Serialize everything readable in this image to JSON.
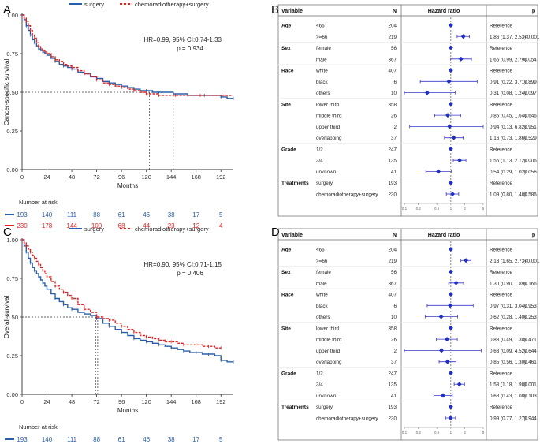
{
  "panel_letters": [
    "A",
    "B",
    "C",
    "D"
  ],
  "chart_data": [
    {
      "panel": "A",
      "type": "line",
      "subtype": "kaplan-meier",
      "legend": [
        "surgery",
        "chemoradiotherapy+surgery"
      ],
      "legend_placement": "top-center",
      "ylabel": "Cancer-specific survival",
      "xlabel": "Months",
      "xlim": [
        0,
        204
      ],
      "ylim": [
        0,
        1
      ],
      "x_ticks": [
        "0",
        "24",
        "48",
        "72",
        "96",
        "120",
        "144",
        "168",
        "192"
      ],
      "y_ticks": [
        "0.00",
        "0.25",
        "0.50",
        "0.75",
        "1.00"
      ],
      "annotation": [
        "HR=0.99, 95% CI:0.74-1.33",
        "p = 0.934"
      ],
      "median_lines": [
        123,
        146
      ],
      "series": [
        {
          "name": "surgery",
          "color": "#2b5ea8",
          "x": [
            0,
            2,
            4,
            6,
            8,
            10,
            12,
            14,
            16,
            18,
            20,
            22,
            24,
            28,
            32,
            36,
            40,
            44,
            48,
            54,
            60,
            66,
            72,
            78,
            84,
            90,
            96,
            102,
            108,
            114,
            120,
            126,
            132,
            138,
            146,
            152,
            160,
            168,
            176,
            184,
            192,
            198,
            204
          ],
          "y": [
            1.0,
            0.97,
            0.93,
            0.9,
            0.87,
            0.84,
            0.82,
            0.8,
            0.78,
            0.77,
            0.76,
            0.75,
            0.74,
            0.72,
            0.7,
            0.68,
            0.67,
            0.66,
            0.65,
            0.63,
            0.62,
            0.6,
            0.59,
            0.57,
            0.56,
            0.55,
            0.54,
            0.53,
            0.52,
            0.51,
            0.51,
            0.5,
            0.5,
            0.5,
            0.49,
            0.49,
            0.48,
            0.48,
            0.48,
            0.48,
            0.47,
            0.46,
            0.46
          ]
        },
        {
          "name": "chemoradiotherapy+surgery",
          "color": "#e02424",
          "x": [
            0,
            2,
            4,
            6,
            8,
            10,
            12,
            14,
            16,
            18,
            20,
            22,
            24,
            28,
            32,
            36,
            40,
            44,
            48,
            54,
            60,
            66,
            72,
            78,
            84,
            90,
            96,
            102,
            108,
            114,
            120,
            126,
            132,
            140,
            148,
            160,
            172,
            186,
            196,
            204
          ],
          "y": [
            1.0,
            0.98,
            0.96,
            0.93,
            0.9,
            0.87,
            0.85,
            0.82,
            0.8,
            0.78,
            0.77,
            0.76,
            0.75,
            0.73,
            0.71,
            0.7,
            0.68,
            0.67,
            0.66,
            0.64,
            0.62,
            0.6,
            0.58,
            0.56,
            0.55,
            0.54,
            0.53,
            0.52,
            0.51,
            0.5,
            0.49,
            0.49,
            0.48,
            0.48,
            0.48,
            0.48,
            0.48,
            0.48,
            0.48,
            0.48
          ]
        }
      ],
      "risk_table": {
        "title": "Number at risk",
        "times": [
          0,
          24,
          48,
          72,
          96,
          120,
          144,
          168,
          192
        ],
        "rows": [
          {
            "name": "surgery",
            "color": "#2b5ea8",
            "values": [
              "193",
              "140",
              "111",
              "88",
              "61",
              "46",
              "38",
              "17",
              "5"
            ]
          },
          {
            "name": "chemoradiotherapy+surgery",
            "color": "#e02424",
            "values": [
              "230",
              "178",
              "144",
              "100",
              "68",
              "44",
              "23",
              "12",
              "4"
            ]
          }
        ]
      }
    },
    {
      "panel": "C",
      "type": "line",
      "subtype": "kaplan-meier",
      "legend": [
        "surgery",
        "chemoradiotherapy+surgery"
      ],
      "legend_placement": "top-center",
      "ylabel": "Overall survival",
      "xlabel": "Months",
      "xlim": [
        0,
        204
      ],
      "ylim": [
        0,
        1
      ],
      "x_ticks": [
        "0",
        "24",
        "48",
        "72",
        "96",
        "120",
        "144",
        "168",
        "192"
      ],
      "y_ticks": [
        "0.00",
        "0.25",
        "0.50",
        "0.75",
        "1.00"
      ],
      "annotation": [
        "HR=0.90, 95% CI:0.71-1.15",
        "p = 0.406"
      ],
      "median_lines": [
        71,
        73
      ],
      "series": [
        {
          "name": "surgery",
          "color": "#2b5ea8",
          "x": [
            0,
            2,
            4,
            6,
            8,
            10,
            12,
            14,
            16,
            18,
            20,
            22,
            24,
            28,
            32,
            36,
            40,
            44,
            48,
            54,
            60,
            66,
            72,
            78,
            84,
            90,
            96,
            102,
            108,
            114,
            120,
            126,
            132,
            138,
            144,
            150,
            156,
            162,
            168,
            174,
            180,
            186,
            192,
            198,
            204
          ],
          "y": [
            1.0,
            0.96,
            0.92,
            0.88,
            0.85,
            0.82,
            0.8,
            0.78,
            0.76,
            0.74,
            0.72,
            0.7,
            0.68,
            0.65,
            0.62,
            0.6,
            0.58,
            0.56,
            0.55,
            0.53,
            0.52,
            0.51,
            0.49,
            0.46,
            0.44,
            0.42,
            0.4,
            0.38,
            0.36,
            0.35,
            0.34,
            0.33,
            0.32,
            0.31,
            0.3,
            0.29,
            0.28,
            0.27,
            0.27,
            0.26,
            0.26,
            0.25,
            0.22,
            0.21,
            0.21
          ]
        },
        {
          "name": "chemoradiotherapy+surgery",
          "color": "#e02424",
          "x": [
            0,
            2,
            4,
            6,
            8,
            10,
            12,
            14,
            16,
            18,
            20,
            22,
            24,
            28,
            32,
            36,
            40,
            44,
            48,
            54,
            60,
            66,
            72,
            78,
            84,
            90,
            96,
            102,
            108,
            114,
            120,
            126,
            132,
            138,
            144,
            150,
            156,
            162,
            168,
            174,
            180,
            186,
            192
          ],
          "y": [
            1.0,
            0.98,
            0.96,
            0.94,
            0.92,
            0.9,
            0.88,
            0.86,
            0.84,
            0.82,
            0.8,
            0.78,
            0.76,
            0.73,
            0.7,
            0.68,
            0.66,
            0.64,
            0.62,
            0.58,
            0.55,
            0.53,
            0.5,
            0.49,
            0.48,
            0.46,
            0.44,
            0.42,
            0.4,
            0.38,
            0.37,
            0.36,
            0.35,
            0.34,
            0.34,
            0.33,
            0.32,
            0.32,
            0.32,
            0.31,
            0.31,
            0.3,
            0.3
          ]
        }
      ],
      "risk_table": {
        "title": "Number at risk",
        "times": [
          0,
          24,
          48,
          72,
          96,
          120,
          144,
          168,
          192
        ],
        "rows": [
          {
            "name": "surgery",
            "color": "#2b5ea8",
            "values": [
              "193",
              "140",
              "111",
              "88",
              "61",
              "46",
              "38",
              "17",
              "5"
            ]
          },
          {
            "name": "chemoradiotherapy+surgery",
            "color": "#e02424",
            "values": [
              "230",
              "178",
              "144",
              "100",
              "68",
              "44",
              "23",
              "12",
              "4"
            ]
          }
        ]
      }
    },
    {
      "panel": "B",
      "type": "forest",
      "headers": {
        "variable": "Variable",
        "n": "N",
        "hr": "Hazard ratio",
        "p": "p"
      },
      "axis_ticks": [
        "0.1",
        "0.2",
        "0.5",
        "1",
        "2",
        "5"
      ],
      "axis_range": [
        0.1,
        5
      ],
      "ref_value": 1,
      "rows": [
        {
          "group": "Age",
          "level": "<66",
          "n": "204",
          "text": "Reference",
          "p": "",
          "hr": 1,
          "lo": 1,
          "hi": 1
        },
        {
          "group": "",
          "level": ">=66",
          "n": "219",
          "text": "1.86 (1.37, 2.53)",
          "p": "<0.001",
          "hr": 1.86,
          "lo": 1.37,
          "hi": 2.53
        },
        {
          "group": "Sex",
          "level": "female",
          "n": "56",
          "text": "Reference",
          "p": "",
          "hr": 1,
          "lo": 1,
          "hi": 1
        },
        {
          "group": "",
          "level": "male",
          "n": "367",
          "text": "1.66 (0.99, 2.79)",
          "p": "0.054",
          "hr": 1.66,
          "lo": 0.99,
          "hi": 2.79
        },
        {
          "group": "Race",
          "level": "white",
          "n": "407",
          "text": "Reference",
          "p": "",
          "hr": 1,
          "lo": 1,
          "hi": 1
        },
        {
          "group": "",
          "level": "black",
          "n": "6",
          "text": "0.91 (0.22, 3.71)",
          "p": "0.899",
          "hr": 0.91,
          "lo": 0.22,
          "hi": 3.71
        },
        {
          "group": "",
          "level": "others",
          "n": "10",
          "text": "0.31 (0.08, 1.24)",
          "p": "0.097",
          "hr": 0.31,
          "lo": 0.08,
          "hi": 1.24
        },
        {
          "group": "Site",
          "level": "lower third",
          "n": "358",
          "text": "Reference",
          "p": "",
          "hr": 1,
          "lo": 1,
          "hi": 1
        },
        {
          "group": "",
          "level": "middle third",
          "n": "26",
          "text": "0.86 (0.45, 1.64)",
          "p": "0.646",
          "hr": 0.86,
          "lo": 0.45,
          "hi": 1.64
        },
        {
          "group": "",
          "level": "upper third",
          "n": "2",
          "text": "0.94 (0.13, 6.82)",
          "p": "0.951",
          "hr": 0.94,
          "lo": 0.13,
          "hi": 6.82
        },
        {
          "group": "",
          "level": "overlapping",
          "n": "37",
          "text": "1.16 (0.73, 1.86)",
          "p": "0.529",
          "hr": 1.16,
          "lo": 0.73,
          "hi": 1.86
        },
        {
          "group": "Grade",
          "level": "1/2",
          "n": "247",
          "text": "Reference",
          "p": "",
          "hr": 1,
          "lo": 1,
          "hi": 1
        },
        {
          "group": "",
          "level": "3/4",
          "n": "135",
          "text": "1.55 (1.13, 2.12)",
          "p": "0.006",
          "hr": 1.55,
          "lo": 1.13,
          "hi": 2.12
        },
        {
          "group": "",
          "level": "unknown",
          "n": "41",
          "text": "0.54 (0.29, 1.02)",
          "p": "0.056",
          "hr": 0.54,
          "lo": 0.29,
          "hi": 1.02
        },
        {
          "group": "Treatments",
          "level": "surgery",
          "n": "193",
          "text": "Reference",
          "p": "",
          "hr": 1,
          "lo": 1,
          "hi": 1
        },
        {
          "group": "",
          "level": "chemoradiotherapy+surgery",
          "n": "230",
          "text": "1.09 (0.80, 1.48)",
          "p": "0.586",
          "hr": 1.09,
          "lo": 0.8,
          "hi": 1.48
        }
      ]
    },
    {
      "panel": "D",
      "type": "forest",
      "headers": {
        "variable": "Variable",
        "n": "N",
        "hr": "Hazard ratio",
        "p": "p"
      },
      "axis_ticks": [
        "0.1",
        "0.2",
        "0.5",
        "1",
        "2",
        "5"
      ],
      "axis_range": [
        0.1,
        5
      ],
      "ref_value": 1,
      "rows": [
        {
          "group": "Age",
          "level": "<66",
          "n": "204",
          "text": "Reference",
          "p": "",
          "hr": 1,
          "lo": 1,
          "hi": 1
        },
        {
          "group": "",
          "level": ">=66",
          "n": "219",
          "text": "2.13 (1.65, 2.73)",
          "p": "<0.001",
          "hr": 2.13,
          "lo": 1.65,
          "hi": 2.73
        },
        {
          "group": "Sex",
          "level": "female",
          "n": "56",
          "text": "Reference",
          "p": "",
          "hr": 1,
          "lo": 1,
          "hi": 1
        },
        {
          "group": "",
          "level": "male",
          "n": "367",
          "text": "1.30 (0.90, 1.89)",
          "p": "0.166",
          "hr": 1.3,
          "lo": 0.9,
          "hi": 1.89
        },
        {
          "group": "Race",
          "level": "white",
          "n": "407",
          "text": "Reference",
          "p": "",
          "hr": 1,
          "lo": 1,
          "hi": 1
        },
        {
          "group": "",
          "level": "black",
          "n": "6",
          "text": "0.97 (0.31, 3.04)",
          "p": "0.953",
          "hr": 0.97,
          "lo": 0.31,
          "hi": 3.04
        },
        {
          "group": "",
          "level": "others",
          "n": "10",
          "text": "0.62 (0.28, 1.40)",
          "p": "0.253",
          "hr": 0.62,
          "lo": 0.28,
          "hi": 1.4
        },
        {
          "group": "Site",
          "level": "lower third",
          "n": "358",
          "text": "Reference",
          "p": "",
          "hr": 1,
          "lo": 1,
          "hi": 1
        },
        {
          "group": "",
          "level": "middle third",
          "n": "26",
          "text": "0.83 (0.49, 1.38)",
          "p": "0.471",
          "hr": 0.83,
          "lo": 0.49,
          "hi": 1.38
        },
        {
          "group": "",
          "level": "upper third",
          "n": "2",
          "text": "0.63 (0.09, 4.52)",
          "p": "0.644",
          "hr": 0.63,
          "lo": 0.09,
          "hi": 4.52
        },
        {
          "group": "",
          "level": "overlapping",
          "n": "37",
          "text": "0.85 (0.56, 1.30)",
          "p": "0.461",
          "hr": 0.85,
          "lo": 0.56,
          "hi": 1.3
        },
        {
          "group": "Grade",
          "level": "1/2",
          "n": "247",
          "text": "Reference",
          "p": "",
          "hr": 1,
          "lo": 1,
          "hi": 1
        },
        {
          "group": "",
          "level": "3/4",
          "n": "135",
          "text": "1.53 (1.18, 1.98)",
          "p": "0.001",
          "hr": 1.53,
          "lo": 1.18,
          "hi": 1.98
        },
        {
          "group": "",
          "level": "unknown",
          "n": "41",
          "text": "0.68 (0.43, 1.08)",
          "p": "0.103",
          "hr": 0.68,
          "lo": 0.43,
          "hi": 1.08
        },
        {
          "group": "Treatments",
          "level": "surgery",
          "n": "193",
          "text": "Reference",
          "p": "",
          "hr": 1,
          "lo": 1,
          "hi": 1
        },
        {
          "group": "",
          "level": "chemoradiotherapy+surgery",
          "n": "230",
          "text": "0.99 (0.77, 1.27)",
          "p": "0.944",
          "hr": 0.99,
          "lo": 0.77,
          "hi": 1.27
        }
      ]
    }
  ]
}
